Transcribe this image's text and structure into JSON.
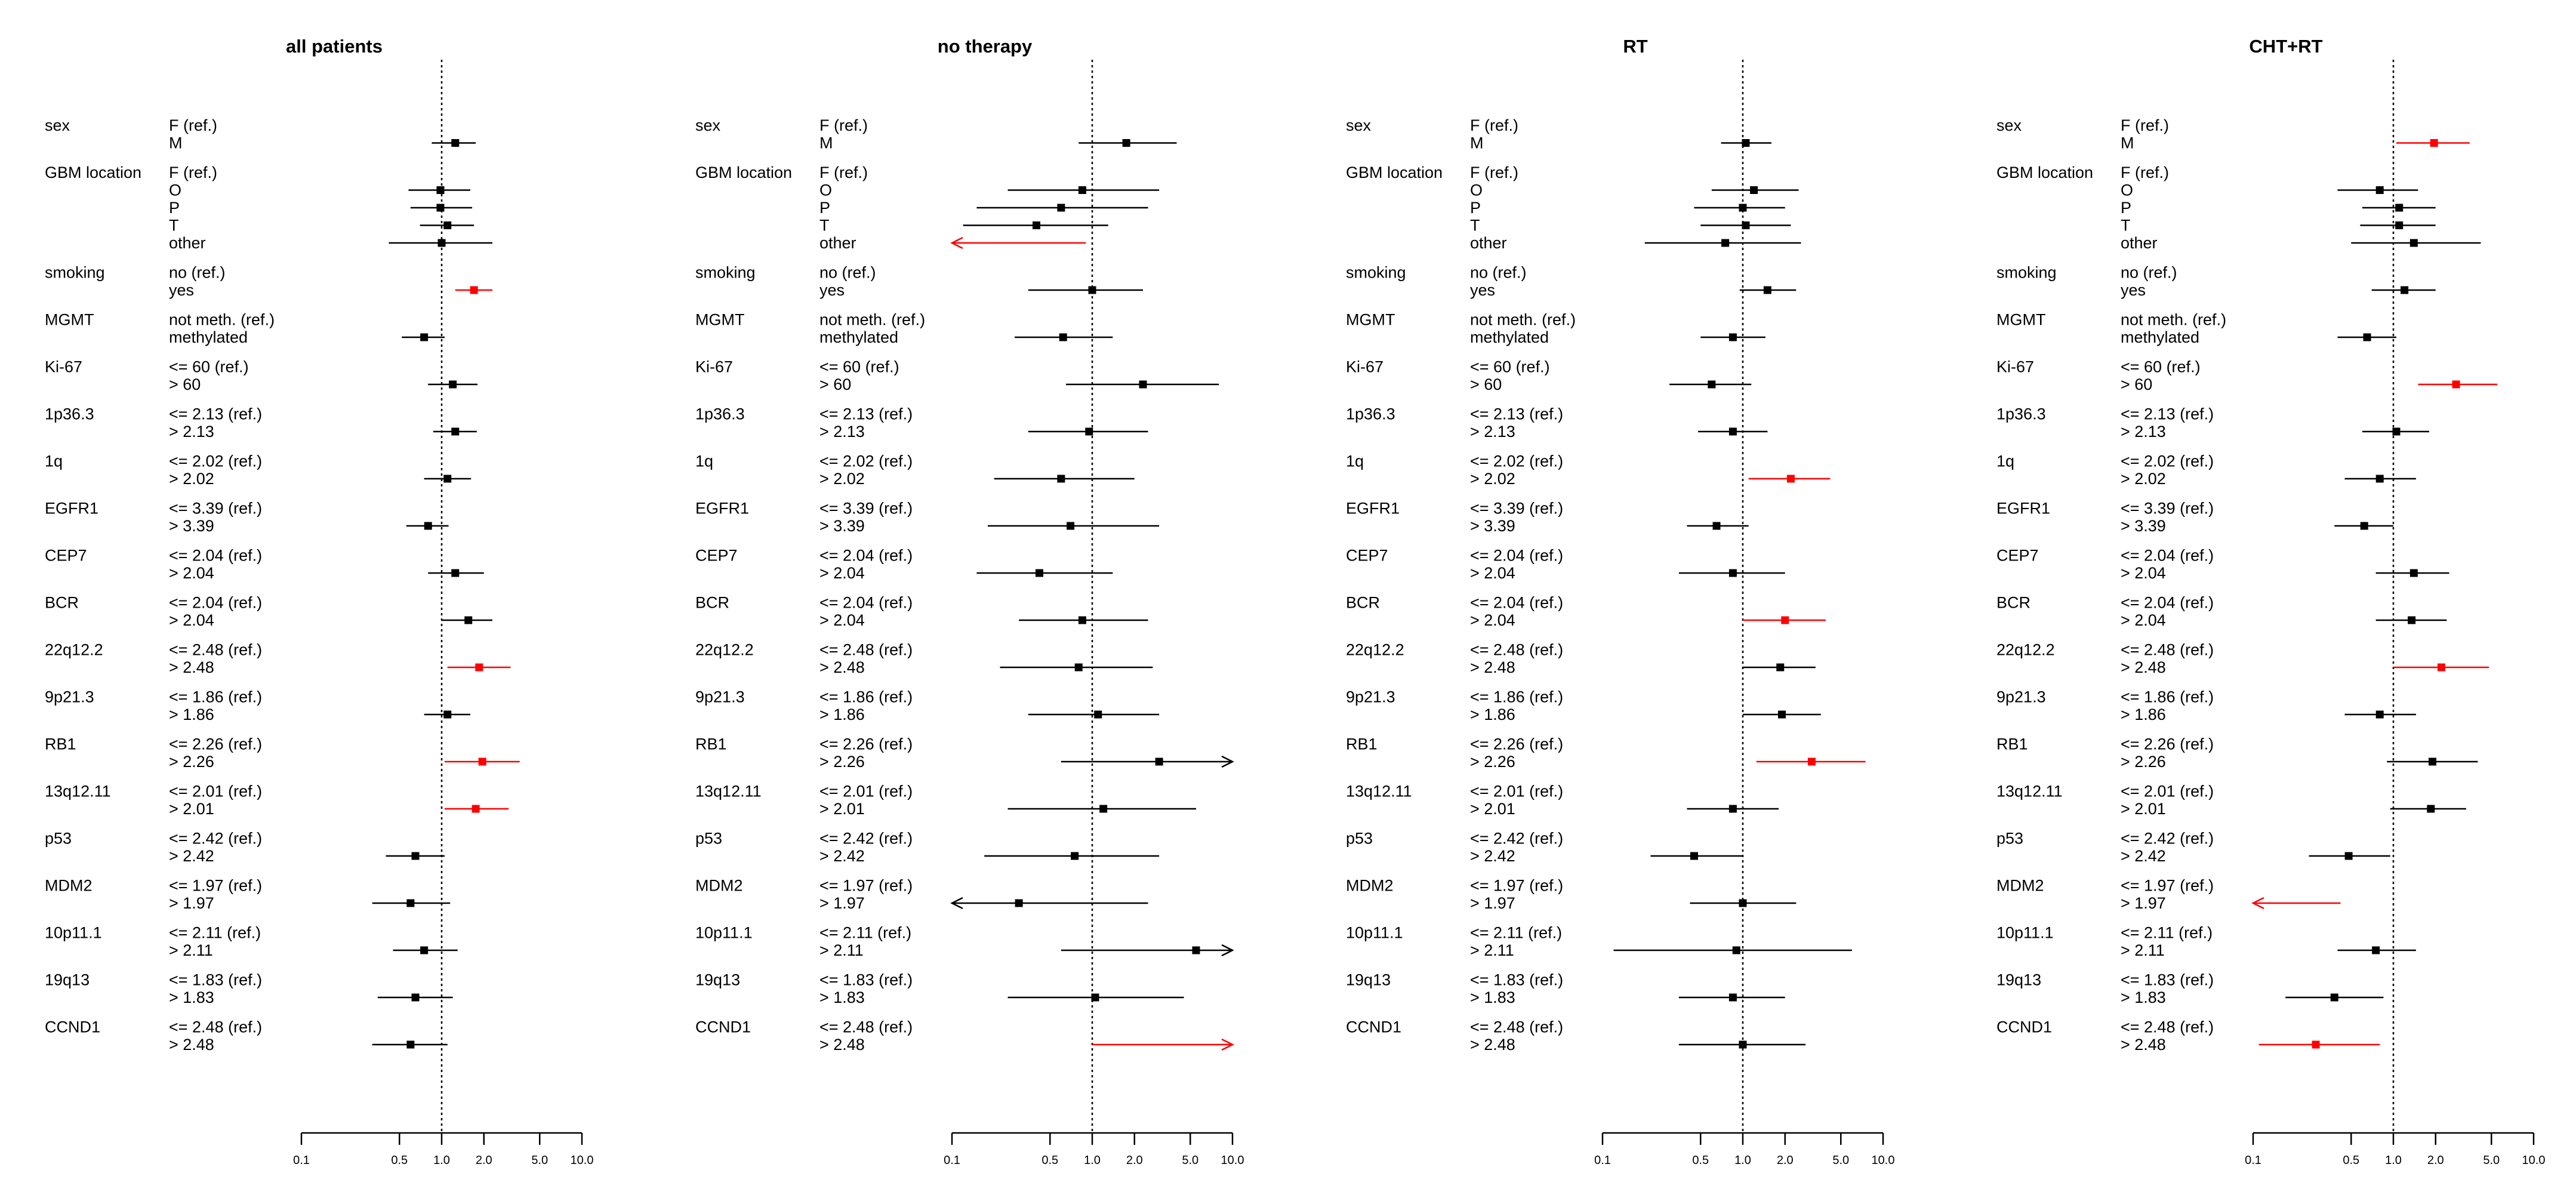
{
  "chart_data": {
    "type": "forest",
    "x_scale": "log",
    "xlim": [
      0.1,
      10.0
    ],
    "reference_line": 1.0,
    "x_ticks": [
      "0.1",
      "0.5",
      "1.0",
      "2.0",
      "5.0",
      "10.0"
    ],
    "colors": {
      "significant": "#ff0000",
      "default": "#000000"
    },
    "variables": [
      {
        "name": "sex",
        "levels": [
          "F (ref.)",
          "M"
        ]
      },
      {
        "name": "GBM location",
        "levels": [
          "F (ref.)",
          "O",
          "P",
          "T",
          "other"
        ]
      },
      {
        "name": "smoking",
        "levels": [
          "no (ref.)",
          "yes"
        ]
      },
      {
        "name": "MGMT",
        "levels": [
          "not meth. (ref.)",
          "methylated"
        ]
      },
      {
        "name": "Ki-67",
        "levels": [
          "<= 60 (ref.)",
          "> 60"
        ]
      },
      {
        "name": "1p36.3",
        "levels": [
          "<= 2.13 (ref.)",
          "> 2.13"
        ]
      },
      {
        "name": "1q",
        "levels": [
          "<= 2.02 (ref.)",
          "> 2.02"
        ]
      },
      {
        "name": "EGFR1",
        "levels": [
          "<= 3.39 (ref.)",
          "> 3.39"
        ]
      },
      {
        "name": "CEP7",
        "levels": [
          "<= 2.04 (ref.)",
          "> 2.04"
        ]
      },
      {
        "name": "BCR",
        "levels": [
          "<= 2.04 (ref.)",
          "> 2.04"
        ]
      },
      {
        "name": "22q12.2",
        "levels": [
          "<= 2.48 (ref.)",
          "> 2.48"
        ]
      },
      {
        "name": "9p21.3",
        "levels": [
          "<= 1.86 (ref.)",
          "> 1.86"
        ]
      },
      {
        "name": "RB1",
        "levels": [
          "<= 2.26 (ref.)",
          "> 2.26"
        ]
      },
      {
        "name": "13q12.11",
        "levels": [
          "<= 2.01 (ref.)",
          "> 2.01"
        ]
      },
      {
        "name": "p53",
        "levels": [
          "<= 2.42 (ref.)",
          "> 2.42"
        ]
      },
      {
        "name": "MDM2",
        "levels": [
          "<= 1.97 (ref.)",
          "> 1.97"
        ]
      },
      {
        "name": "10p11.1",
        "levels": [
          "<= 2.11 (ref.)",
          "> 2.11"
        ]
      },
      {
        "name": "19q13",
        "levels": [
          "<= 1.83 (ref.)",
          "> 1.83"
        ]
      },
      {
        "name": "CCND1",
        "levels": [
          "<= 2.48 (ref.)",
          "> 2.48"
        ]
      }
    ],
    "panels": [
      {
        "title": "all patients",
        "estimates": [
          {
            "label": "M",
            "hr": 1.25,
            "lo": 0.85,
            "hi": 1.75,
            "sig": false
          },
          {
            "label": "O",
            "hr": 0.98,
            "lo": 0.58,
            "hi": 1.6,
            "sig": false
          },
          {
            "label": "P",
            "hr": 0.98,
            "lo": 0.6,
            "hi": 1.65,
            "sig": false
          },
          {
            "label": "T",
            "hr": 1.1,
            "lo": 0.7,
            "hi": 1.7,
            "sig": false
          },
          {
            "label": "other",
            "hr": 1.0,
            "lo": 0.42,
            "hi": 2.3,
            "sig": false
          },
          {
            "label": "yes",
            "hr": 1.7,
            "lo": 1.25,
            "hi": 2.3,
            "sig": true
          },
          {
            "label": "methylated",
            "hr": 0.75,
            "lo": 0.52,
            "hi": 1.05,
            "sig": false
          },
          {
            "label": "> 60",
            "hr": 1.2,
            "lo": 0.8,
            "hi": 1.8,
            "sig": false
          },
          {
            "label": "> 2.13",
            "hr": 1.25,
            "lo": 0.87,
            "hi": 1.78,
            "sig": false
          },
          {
            "label": "> 2.02",
            "hr": 1.1,
            "lo": 0.75,
            "hi": 1.62,
            "sig": false
          },
          {
            "label": "> 3.39",
            "hr": 0.8,
            "lo": 0.56,
            "hi": 1.12,
            "sig": false
          },
          {
            "label": "> 2.04",
            "hr": 1.25,
            "lo": 0.8,
            "hi": 2.0,
            "sig": false
          },
          {
            "label": "> 2.04",
            "hr": 1.55,
            "lo": 1.0,
            "hi": 2.3,
            "sig": false
          },
          {
            "label": "> 2.48",
            "hr": 1.85,
            "lo": 1.1,
            "hi": 3.1,
            "sig": true
          },
          {
            "label": "> 1.86",
            "hr": 1.1,
            "lo": 0.75,
            "hi": 1.6,
            "sig": false
          },
          {
            "label": "> 2.26",
            "hr": 1.95,
            "lo": 1.05,
            "hi": 3.6,
            "sig": true
          },
          {
            "label": "> 2.01",
            "hr": 1.75,
            "lo": 1.05,
            "hi": 3.0,
            "sig": true
          },
          {
            "label": "> 2.42",
            "hr": 0.65,
            "lo": 0.4,
            "hi": 1.05,
            "sig": false
          },
          {
            "label": "> 1.97",
            "hr": 0.6,
            "lo": 0.32,
            "hi": 1.15,
            "sig": false
          },
          {
            "label": "> 2.11",
            "hr": 0.75,
            "lo": 0.45,
            "hi": 1.3,
            "sig": false
          },
          {
            "label": "> 1.83",
            "hr": 0.65,
            "lo": 0.35,
            "hi": 1.2,
            "sig": false
          },
          {
            "label": "> 2.48",
            "hr": 0.6,
            "lo": 0.32,
            "hi": 1.1,
            "sig": false
          }
        ]
      },
      {
        "title": "no therapy",
        "estimates": [
          {
            "label": "M",
            "hr": 1.75,
            "lo": 0.8,
            "hi": 4.0,
            "sig": false
          },
          {
            "label": "O",
            "hr": 0.85,
            "lo": 0.25,
            "hi": 3.0,
            "sig": false
          },
          {
            "label": "P",
            "hr": 0.6,
            "lo": 0.15,
            "hi": 2.5,
            "sig": false
          },
          {
            "label": "T",
            "hr": 0.4,
            "lo": 0.12,
            "hi": 1.3,
            "sig": false
          },
          {
            "label": "other",
            "hr": null,
            "lo": 0.1,
            "hi": 0.9,
            "sig": true,
            "arrow": "left"
          },
          {
            "label": "yes",
            "hr": 1.0,
            "lo": 0.35,
            "hi": 2.3,
            "sig": false
          },
          {
            "label": "methylated",
            "hr": 0.62,
            "lo": 0.28,
            "hi": 1.4,
            "sig": false
          },
          {
            "label": "> 60",
            "hr": 2.3,
            "lo": 0.65,
            "hi": 8.0,
            "sig": false
          },
          {
            "label": "> 2.13",
            "hr": 0.95,
            "lo": 0.35,
            "hi": 2.5,
            "sig": false
          },
          {
            "label": "> 2.02",
            "hr": 0.6,
            "lo": 0.2,
            "hi": 2.0,
            "sig": false
          },
          {
            "label": "> 3.39",
            "hr": 0.7,
            "lo": 0.18,
            "hi": 3.0,
            "sig": false
          },
          {
            "label": "> 2.04",
            "hr": 0.42,
            "lo": 0.15,
            "hi": 1.4,
            "sig": false
          },
          {
            "label": "> 2.04",
            "hr": 0.85,
            "lo": 0.3,
            "hi": 2.5,
            "sig": false
          },
          {
            "label": "> 2.48",
            "hr": 0.8,
            "lo": 0.22,
            "hi": 2.7,
            "sig": false
          },
          {
            "label": "> 1.86",
            "hr": 1.1,
            "lo": 0.35,
            "hi": 3.0,
            "sig": false
          },
          {
            "label": "> 2.26",
            "hr": 3.0,
            "lo": 0.6,
            "hi": 10.0,
            "sig": false,
            "arrow": "right"
          },
          {
            "label": "> 2.01",
            "hr": 1.2,
            "lo": 0.25,
            "hi": 5.5,
            "sig": false
          },
          {
            "label": "> 2.42",
            "hr": 0.75,
            "lo": 0.17,
            "hi": 3.0,
            "sig": false
          },
          {
            "label": "> 1.97",
            "hr": 0.3,
            "lo": 0.1,
            "hi": 2.5,
            "sig": false,
            "arrow": "left"
          },
          {
            "label": "> 2.11",
            "hr": 5.5,
            "lo": 0.6,
            "hi": 10.0,
            "sig": false,
            "arrow": "right"
          },
          {
            "label": "> 1.83",
            "hr": 1.05,
            "lo": 0.25,
            "hi": 4.5,
            "sig": false
          },
          {
            "label": "> 2.48",
            "hr": null,
            "lo": 1.0,
            "hi": 10.0,
            "sig": true,
            "arrow": "right"
          }
        ]
      },
      {
        "title": "RT",
        "estimates": [
          {
            "label": "M",
            "hr": 1.05,
            "lo": 0.7,
            "hi": 1.6,
            "sig": false
          },
          {
            "label": "O",
            "hr": 1.2,
            "lo": 0.6,
            "hi": 2.5,
            "sig": false
          },
          {
            "label": "P",
            "hr": 1.0,
            "lo": 0.45,
            "hi": 2.0,
            "sig": false
          },
          {
            "label": "T",
            "hr": 1.05,
            "lo": 0.5,
            "hi": 2.2,
            "sig": false
          },
          {
            "label": "other",
            "hr": 0.75,
            "lo": 0.2,
            "hi": 2.6,
            "sig": false
          },
          {
            "label": "yes",
            "hr": 1.5,
            "lo": 0.95,
            "hi": 2.4,
            "sig": false
          },
          {
            "label": "methylated",
            "hr": 0.85,
            "lo": 0.5,
            "hi": 1.45,
            "sig": false
          },
          {
            "label": "> 60",
            "hr": 0.6,
            "lo": 0.3,
            "hi": 1.15,
            "sig": false
          },
          {
            "label": "> 2.13",
            "hr": 0.85,
            "lo": 0.48,
            "hi": 1.5,
            "sig": false
          },
          {
            "label": "> 2.02",
            "hr": 2.2,
            "lo": 1.1,
            "hi": 4.2,
            "sig": true
          },
          {
            "label": "> 3.39",
            "hr": 0.65,
            "lo": 0.4,
            "hi": 1.1,
            "sig": false
          },
          {
            "label": "> 2.04",
            "hr": 0.85,
            "lo": 0.35,
            "hi": 2.0,
            "sig": false
          },
          {
            "label": "> 2.04",
            "hr": 2.0,
            "lo": 1.0,
            "hi": 3.9,
            "sig": true
          },
          {
            "label": "> 2.48",
            "hr": 1.85,
            "lo": 1.0,
            "hi": 3.3,
            "sig": false
          },
          {
            "label": "> 1.86",
            "hr": 1.9,
            "lo": 1.0,
            "hi": 3.6,
            "sig": false
          },
          {
            "label": "> 2.26",
            "hr": 3.1,
            "lo": 1.25,
            "hi": 7.5,
            "sig": true
          },
          {
            "label": "> 2.01",
            "hr": 0.85,
            "lo": 0.4,
            "hi": 1.8,
            "sig": false
          },
          {
            "label": "> 2.42",
            "hr": 0.45,
            "lo": 0.22,
            "hi": 1.0,
            "sig": false
          },
          {
            "label": "> 1.97",
            "hr": 1.0,
            "lo": 0.42,
            "hi": 2.4,
            "sig": false
          },
          {
            "label": "> 2.11",
            "hr": 0.9,
            "lo": 0.12,
            "hi": 6.0,
            "sig": false
          },
          {
            "label": "> 1.83",
            "hr": 0.85,
            "lo": 0.35,
            "hi": 2.0,
            "sig": false
          },
          {
            "label": "> 2.48",
            "hr": 1.0,
            "lo": 0.35,
            "hi": 2.8,
            "sig": false
          }
        ]
      },
      {
        "title": "CHT+RT",
        "estimates": [
          {
            "label": "M",
            "hr": 1.95,
            "lo": 1.05,
            "hi": 3.5,
            "sig": true
          },
          {
            "label": "O",
            "hr": 0.8,
            "lo": 0.4,
            "hi": 1.5,
            "sig": false
          },
          {
            "label": "P",
            "hr": 1.1,
            "lo": 0.6,
            "hi": 2.0,
            "sig": false
          },
          {
            "label": "T",
            "hr": 1.1,
            "lo": 0.58,
            "hi": 2.0,
            "sig": false
          },
          {
            "label": "other",
            "hr": 1.4,
            "lo": 0.5,
            "hi": 4.2,
            "sig": false
          },
          {
            "label": "yes",
            "hr": 1.2,
            "lo": 0.7,
            "hi": 2.0,
            "sig": false
          },
          {
            "label": "methylated",
            "hr": 0.65,
            "lo": 0.4,
            "hi": 1.05,
            "sig": false
          },
          {
            "label": "> 60",
            "hr": 2.8,
            "lo": 1.5,
            "hi": 5.5,
            "sig": true
          },
          {
            "label": "> 2.13",
            "hr": 1.05,
            "lo": 0.6,
            "hi": 1.8,
            "sig": false
          },
          {
            "label": "> 2.02",
            "hr": 0.8,
            "lo": 0.45,
            "hi": 1.45,
            "sig": false
          },
          {
            "label": "> 3.39",
            "hr": 0.62,
            "lo": 0.38,
            "hi": 1.0,
            "sig": false
          },
          {
            "label": "> 2.04",
            "hr": 1.4,
            "lo": 0.75,
            "hi": 2.5,
            "sig": false
          },
          {
            "label": "> 2.04",
            "hr": 1.35,
            "lo": 0.75,
            "hi": 2.4,
            "sig": false
          },
          {
            "label": "> 2.48",
            "hr": 2.2,
            "lo": 1.0,
            "hi": 4.8,
            "sig": true
          },
          {
            "label": "> 1.86",
            "hr": 0.8,
            "lo": 0.45,
            "hi": 1.45,
            "sig": false
          },
          {
            "label": "> 2.26",
            "hr": 1.9,
            "lo": 0.9,
            "hi": 4.0,
            "sig": false
          },
          {
            "label": "> 2.01",
            "hr": 1.85,
            "lo": 0.95,
            "hi": 3.3,
            "sig": false
          },
          {
            "label": "> 2.42",
            "hr": 0.48,
            "lo": 0.25,
            "hi": 0.95,
            "sig": false
          },
          {
            "label": "> 1.97",
            "hr": null,
            "lo": 0.1,
            "hi": 0.42,
            "sig": true,
            "arrow": "left"
          },
          {
            "label": "> 2.11",
            "hr": 0.75,
            "lo": 0.4,
            "hi": 1.45,
            "sig": false
          },
          {
            "label": "> 1.83",
            "hr": 0.38,
            "lo": 0.17,
            "hi": 0.85,
            "sig": false
          },
          {
            "label": "> 2.48",
            "hr": 0.28,
            "lo": 0.11,
            "hi": 0.8,
            "sig": true
          }
        ]
      }
    ]
  }
}
